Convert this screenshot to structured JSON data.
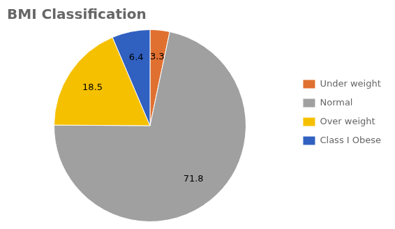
{
  "chart_data": {
    "type": "pie",
    "title": "BMI Classification",
    "categories": [
      "Under weight",
      "Normal",
      "Over weight",
      "Class I Obese"
    ],
    "values": [
      3.3,
      71.8,
      18.5,
      6.4
    ],
    "colors": [
      "#e07030",
      "#a0a0a0",
      "#f5c000",
      "#3060c0"
    ],
    "data_labels": true,
    "legend": "right"
  }
}
